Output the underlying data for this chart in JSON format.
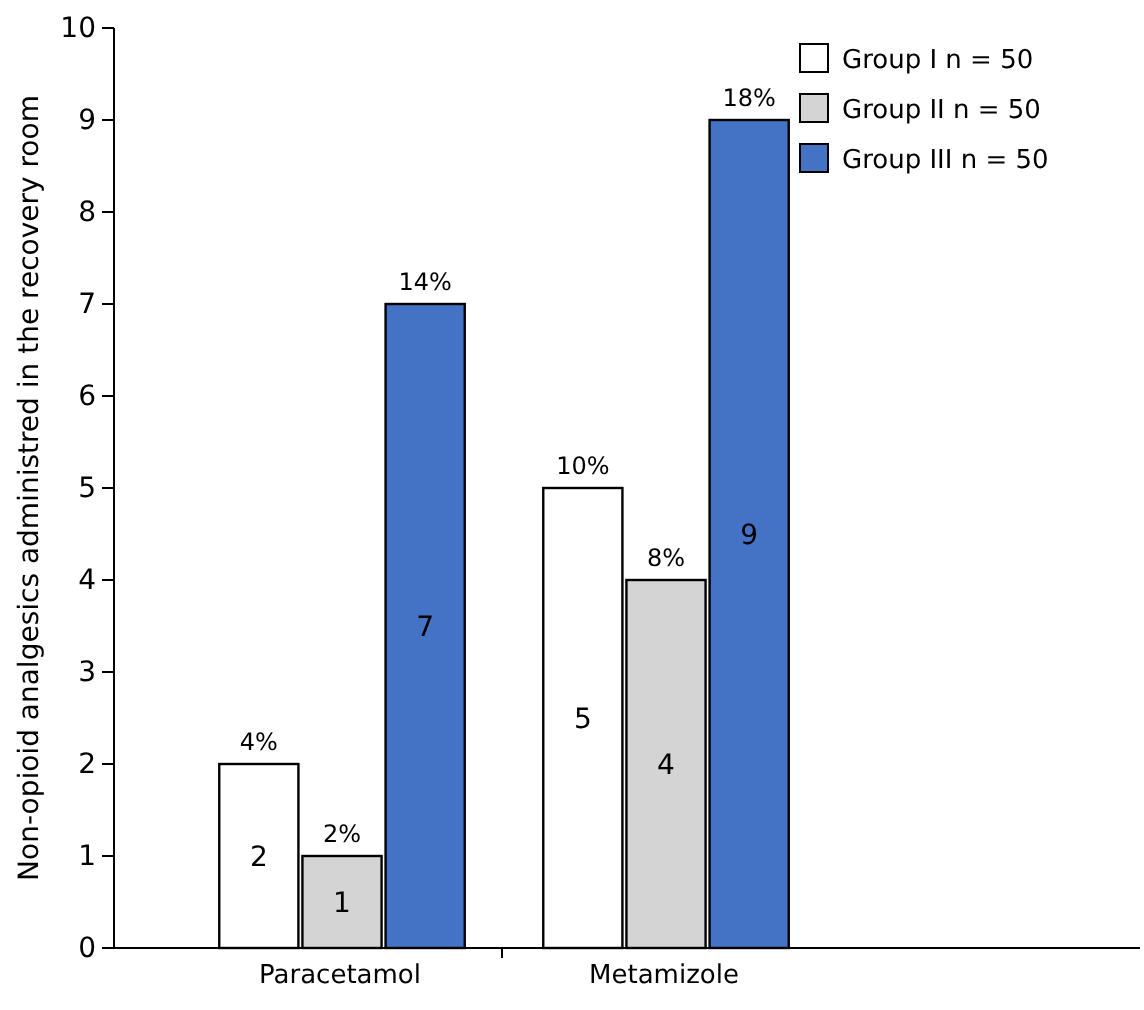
{
  "chart_data": {
    "type": "bar",
    "ylabel": "Non-opioid analgesics administred in the recovery room",
    "categories": [
      "Paracetamol",
      "Metamizole"
    ],
    "series": [
      {
        "name": "Group I n = 50",
        "color": "#ffffff",
        "values": [
          2,
          5
        ]
      },
      {
        "name": "Group II n = 50",
        "color": "#d4d4d4",
        "values": [
          1,
          4
        ]
      },
      {
        "name": "Group III n = 50",
        "color": "#4472c4",
        "values": [
          7,
          9
        ]
      }
    ],
    "annotations": [
      "4%",
      "2%",
      "14%",
      "10%",
      "8%",
      "18%"
    ],
    "ylim": [
      0,
      10
    ],
    "yticks": [
      0,
      1,
      2,
      3,
      4,
      5,
      6,
      7,
      8,
      9,
      10
    ],
    "data_labels": true,
    "legend": "top right",
    "grid": false
  }
}
